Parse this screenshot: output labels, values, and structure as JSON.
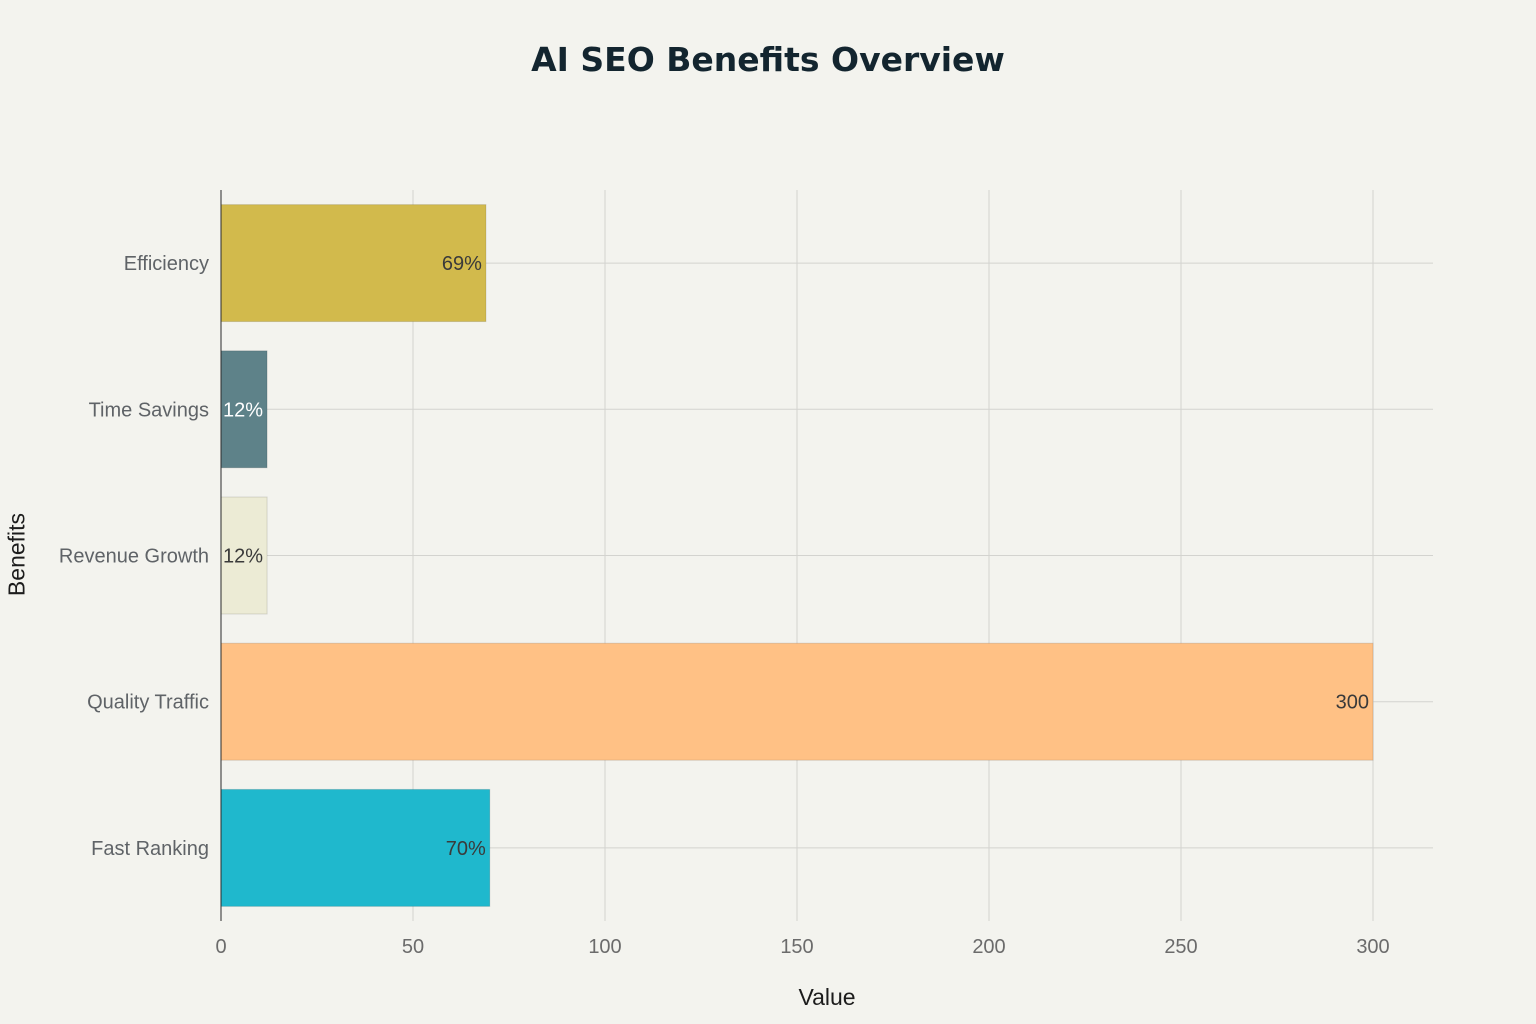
{
  "chart_data": {
    "type": "bar",
    "orientation": "horizontal",
    "title": "AI SEO Benefits Overview",
    "xlabel": "Value",
    "ylabel": "Benefits",
    "xlim": [
      0,
      315
    ],
    "x_ticks": [
      0,
      50,
      100,
      150,
      200,
      250,
      300
    ],
    "grid": true,
    "categories": [
      "Efficiency",
      "Time Savings",
      "Revenue Growth",
      "Quality Traffic",
      "Fast Ranking"
    ],
    "values": [
      69,
      12,
      12,
      300,
      70
    ],
    "data_labels": [
      "69%",
      "12%",
      "12%",
      "300",
      "70%"
    ],
    "colors": [
      "#d2ba4c",
      "#5e8289",
      "#ecebd5",
      "#ffc185",
      "#1fb8cd"
    ],
    "label_colors": [
      "#3a3a3a",
      "#ffffff",
      "#3a3a3a",
      "#3a3a3a",
      "#3a3a3a"
    ]
  }
}
